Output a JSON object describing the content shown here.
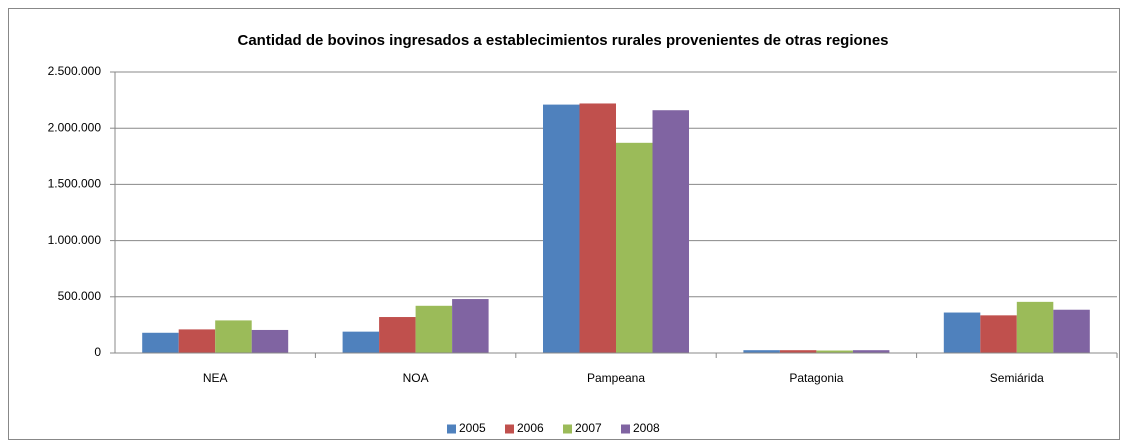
{
  "chart_data": {
    "type": "bar",
    "title": "Cantidad de bovinos ingresados a establecimientos rurales provenientes de otras regiones",
    "categories": [
      "NEA",
      "NOA",
      "Pampeana",
      "Patagonia",
      "Semiárida"
    ],
    "series": [
      {
        "name": "2005",
        "color": "#4f81bd",
        "values": [
          180000,
          190000,
          2210000,
          25000,
          360000
        ]
      },
      {
        "name": "2006",
        "color": "#c0504d",
        "values": [
          210000,
          320000,
          2220000,
          25000,
          335000
        ]
      },
      {
        "name": "2007",
        "color": "#9bbb59",
        "values": [
          290000,
          420000,
          1870000,
          22000,
          455000
        ]
      },
      {
        "name": "2008",
        "color": "#8064a2",
        "values": [
          205000,
          480000,
          2160000,
          25000,
          385000
        ]
      }
    ],
    "ylim": [
      0,
      2500000
    ],
    "yticks": [
      0,
      {
        "value": 500000,
        "label": "500.000"
      },
      {
        "value": 1000000,
        "label": "1.000.000"
      },
      {
        "value": 1500000,
        "label": "1.500.000"
      },
      {
        "value": 2000000,
        "label": "2.000.000"
      },
      {
        "value": 2500000,
        "label": "2.500.000"
      }
    ],
    "grid": true,
    "legend": "bottom"
  }
}
